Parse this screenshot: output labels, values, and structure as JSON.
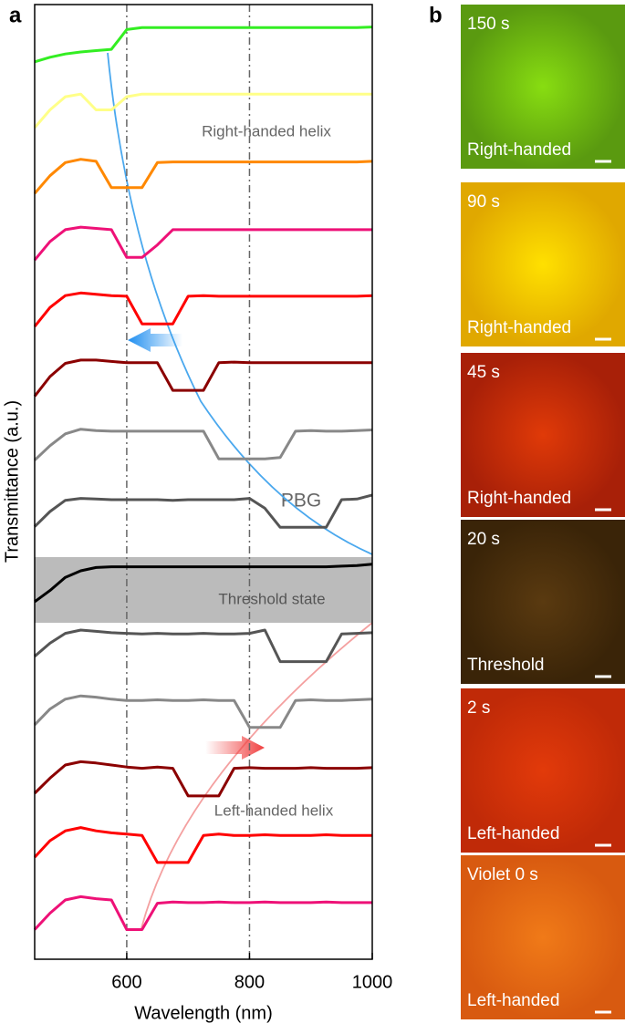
{
  "chart_data": {
    "type": "line",
    "panel_label": "a",
    "x_label": "Wavelength (nm)",
    "y_label": "Transmittance (a.u.)",
    "xlim": [
      450,
      1000
    ],
    "ylim": [
      0,
      14.5
    ],
    "xticks": [
      600,
      800,
      1000
    ],
    "vlines": [
      600,
      800
    ],
    "annotations": [
      "Right-handed helix",
      "PBG",
      "Threshold state",
      "Left-handed helix"
    ],
    "x": [
      450,
      475,
      500,
      525,
      550,
      575,
      600,
      625,
      650,
      675,
      700,
      725,
      750,
      775,
      800,
      825,
      850,
      875,
      900,
      925,
      950,
      975,
      1000
    ],
    "series": [
      {
        "color": "#33ee22",
        "values": [
          13.63,
          13.7,
          13.75,
          13.78,
          13.8,
          13.82,
          14.12,
          14.15,
          14.15,
          14.15,
          14.15,
          14.15,
          14.15,
          14.15,
          14.15,
          14.15,
          14.15,
          14.15,
          14.15,
          14.15,
          14.15,
          14.15,
          14.16
        ]
      },
      {
        "color": "#ffff88",
        "values": [
          12.63,
          12.9,
          13.1,
          13.14,
          12.9,
          12.9,
          13.1,
          13.14,
          13.14,
          13.14,
          13.14,
          13.14,
          13.14,
          13.14,
          13.14,
          13.14,
          13.14,
          13.14,
          13.14,
          13.14,
          13.14,
          13.14,
          13.14
        ]
      },
      {
        "color": "#ff8800",
        "values": [
          11.63,
          11.9,
          12.1,
          12.15,
          12.12,
          11.72,
          11.72,
          11.72,
          12.1,
          12.11,
          12.11,
          12.11,
          12.11,
          12.11,
          12.11,
          12.11,
          12.11,
          12.11,
          12.11,
          12.11,
          12.11,
          12.11,
          12.12
        ]
      },
      {
        "color": "#ee1177",
        "values": [
          10.62,
          10.9,
          11.08,
          11.12,
          11.1,
          11.08,
          10.66,
          10.66,
          10.85,
          11.08,
          11.08,
          11.08,
          11.08,
          11.08,
          11.08,
          11.08,
          11.08,
          11.08,
          11.08,
          11.08,
          11.08,
          11.08,
          11.08
        ]
      },
      {
        "color": "#ff0000",
        "values": [
          9.61,
          9.9,
          10.08,
          10.12,
          10.1,
          10.08,
          10.07,
          9.65,
          9.65,
          9.65,
          10.07,
          10.08,
          10.07,
          10.07,
          10.07,
          10.07,
          10.07,
          10.07,
          10.07,
          10.07,
          10.07,
          10.07,
          10.08
        ]
      },
      {
        "color": "#8b0000",
        "values": [
          8.55,
          8.85,
          9.05,
          9.1,
          9.1,
          9.08,
          9.06,
          9.06,
          9.06,
          8.64,
          8.64,
          8.64,
          9.06,
          9.07,
          9.06,
          9.06,
          9.06,
          9.06,
          9.06,
          9.06,
          9.06,
          9.06,
          9.06
        ]
      },
      {
        "color": "#888888",
        "values": [
          7.58,
          7.8,
          7.98,
          8.05,
          8.03,
          8.02,
          8.02,
          8.02,
          8.02,
          8.02,
          8.02,
          8.02,
          7.6,
          7.6,
          7.6,
          7.6,
          7.62,
          8.02,
          8.03,
          8.02,
          8.02,
          8.03,
          8.04
        ]
      },
      {
        "color": "#555555",
        "values": [
          6.57,
          6.8,
          6.97,
          7.0,
          6.99,
          6.98,
          6.98,
          6.98,
          6.98,
          6.97,
          6.98,
          6.98,
          6.98,
          6.98,
          7.0,
          6.85,
          6.56,
          6.56,
          6.56,
          6.56,
          6.98,
          6.99,
          7.05
        ]
      },
      {
        "color": "#000000",
        "values": [
          5.43,
          5.6,
          5.8,
          5.9,
          5.95,
          5.96,
          5.96,
          5.96,
          5.96,
          5.96,
          5.96,
          5.96,
          5.96,
          5.96,
          5.96,
          5.96,
          5.96,
          5.96,
          5.96,
          5.96,
          5.97,
          5.98,
          6.0
        ]
      },
      {
        "color": "#555555",
        "values": [
          4.6,
          4.8,
          4.95,
          5.0,
          4.98,
          4.96,
          4.95,
          4.94,
          4.95,
          4.94,
          4.94,
          4.95,
          4.94,
          4.94,
          4.95,
          5.0,
          4.52,
          4.52,
          4.52,
          4.52,
          4.94,
          4.95,
          4.96
        ]
      },
      {
        "color": "#888888",
        "values": [
          3.56,
          3.8,
          3.95,
          4.0,
          3.98,
          3.95,
          3.93,
          3.93,
          3.94,
          3.93,
          3.93,
          3.94,
          3.93,
          3.93,
          3.52,
          3.52,
          3.52,
          3.93,
          3.94,
          3.93,
          3.93,
          3.94,
          3.95
        ]
      },
      {
        "color": "#8b0000",
        "values": [
          2.52,
          2.75,
          2.95,
          3.0,
          2.98,
          2.95,
          2.92,
          2.9,
          2.92,
          2.9,
          2.48,
          2.48,
          2.48,
          2.9,
          2.91,
          2.9,
          2.9,
          2.9,
          2.91,
          2.9,
          2.9,
          2.9,
          2.91
        ]
      },
      {
        "color": "#ff0000",
        "values": [
          1.55,
          1.8,
          1.95,
          2.0,
          1.95,
          1.92,
          1.9,
          1.88,
          1.47,
          1.47,
          1.47,
          1.88,
          1.9,
          1.88,
          1.88,
          1.89,
          1.88,
          1.88,
          1.88,
          1.89,
          1.88,
          1.88,
          1.88
        ]
      },
      {
        "color": "#ee1177",
        "values": [
          0.45,
          0.7,
          0.9,
          0.95,
          0.92,
          0.9,
          0.45,
          0.45,
          0.85,
          0.87,
          0.86,
          0.86,
          0.87,
          0.86,
          0.86,
          0.87,
          0.86,
          0.86,
          0.86,
          0.87,
          0.86,
          0.86,
          0.86
        ]
      }
    ]
  },
  "panel_b": {
    "label": "b",
    "images": [
      {
        "time": "150 s",
        "handedness": "Right-handed"
      },
      {
        "time": "90 s",
        "handedness": "Right-handed"
      },
      {
        "time": "45 s",
        "handedness": "Right-handed"
      },
      {
        "time": "20 s",
        "handedness": "Threshold"
      },
      {
        "time": "2 s",
        "handedness": "Left-handed"
      },
      {
        "time": "Violet 0 s",
        "handedness": "Left-handed"
      }
    ]
  }
}
